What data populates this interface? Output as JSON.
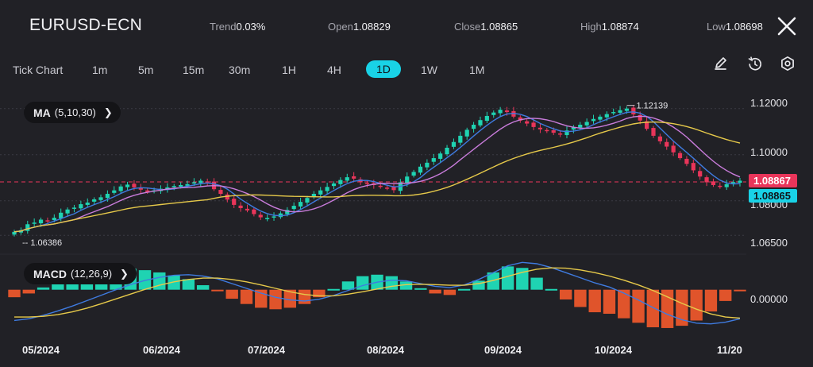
{
  "header": {
    "symbol": "EURUSD-ECN",
    "stats": [
      {
        "key": "Trend",
        "value": "0.03%"
      },
      {
        "key": "Open",
        "value": "1.08829"
      },
      {
        "key": "Close",
        "value": "1.08865"
      },
      {
        "key": "High",
        "value": "1.08874"
      },
      {
        "key": "Low",
        "value": "1.08698"
      }
    ]
  },
  "tabs": [
    "Tick Chart",
    "1m",
    "5m",
    "15m",
    "30m",
    "1H",
    "4H",
    "1D",
    "1W",
    "1M"
  ],
  "active_tab": "1D",
  "tools": [
    "pencil-icon",
    "reset-icon",
    "settings-icon"
  ],
  "main_indicator": {
    "name": "MA",
    "params": "(5,10,30)"
  },
  "sub_indicator": {
    "name": "MACD",
    "params": "(12,26,9)"
  },
  "price_axis": [
    "1.12000",
    "1.10000",
    "1.08000",
    "1.06500"
  ],
  "macd_axis": [
    "0.00000"
  ],
  "time_axis": [
    "05/2024",
    "06/2024",
    "07/2024",
    "08/2024",
    "09/2024",
    "10/2024",
    "11/20"
  ],
  "max_marker": "1.12139",
  "min_marker": "1.06386",
  "tags": {
    "ask": "1.08867",
    "last": "1.08865"
  },
  "colors": {
    "up": "#1fd3b2",
    "down": "#e9355a",
    "accent": "#19d2e6",
    "ma5": "#3f7be0",
    "ma10": "#c97cdb",
    "ma30": "#e6c94a",
    "background": "#212126"
  },
  "chart_data": {
    "type": "candlestick",
    "title": "EURUSD-ECN",
    "categories": [
      "05/2024",
      "06/2024",
      "07/2024",
      "08/2024",
      "09/2024",
      "10/2024",
      "11/20"
    ],
    "ylim": [
      1.063,
      1.123
    ],
    "close_series": [
      1.0665,
      1.0672,
      1.0698,
      1.0705,
      1.0718,
      1.0712,
      1.0726,
      1.0748,
      1.0762,
      1.077,
      1.0785,
      1.0792,
      1.0806,
      1.0815,
      1.083,
      1.0845,
      1.0862,
      1.087,
      1.0858,
      1.0848,
      1.0838,
      1.0845,
      1.0852,
      1.0858,
      1.0864,
      1.0868,
      1.0872,
      1.088,
      1.0887,
      1.0879,
      1.085,
      1.083,
      1.0805,
      1.0782,
      1.0768,
      1.0758,
      1.0742,
      1.0728,
      1.0725,
      1.0732,
      1.0745,
      1.076,
      1.0778,
      1.0795,
      1.0812,
      1.083,
      1.0845,
      1.086,
      1.0875,
      1.089,
      1.0902,
      1.0896,
      1.088,
      1.0872,
      1.0868,
      1.086,
      1.0856,
      1.0846,
      1.088,
      1.0905,
      1.0925,
      1.0948,
      1.0965,
      1.0985,
      1.1005,
      1.103,
      1.1055,
      1.1082,
      1.1108,
      1.113,
      1.115,
      1.1168,
      1.1183,
      1.1195,
      1.1185,
      1.1165,
      1.1148,
      1.1135,
      1.112,
      1.111,
      1.1102,
      1.1095,
      1.1088,
      1.1105,
      1.112,
      1.113,
      1.1142,
      1.1155,
      1.1165,
      1.1176,
      1.1185,
      1.1193,
      1.12,
      1.1175,
      1.1148,
      1.1112,
      1.1082,
      1.1058,
      1.1035,
      1.101,
      1.0985,
      1.096,
      1.0932,
      1.0905,
      1.088,
      1.0868,
      1.0862,
      1.0872,
      1.0881,
      1.0887
    ],
    "max_value": 1.12139,
    "min_value": 1.06386,
    "macd": {
      "ylim": [
        -0.011,
        0.009
      ],
      "dif": [
        -0.009,
        -0.0085,
        -0.0075,
        -0.0062,
        -0.0048,
        -0.0032,
        -0.0016,
        0.0,
        0.0015,
        0.0027,
        0.0036,
        0.0042,
        0.0044,
        0.004,
        0.0032,
        0.0018,
        0.0004,
        -0.001,
        -0.0022,
        -0.003,
        -0.0033,
        -0.0028,
        -0.0017,
        -0.0002,
        0.0012,
        0.0022,
        0.0028,
        0.0026,
        0.0018,
        0.001,
        0.0006,
        0.0014,
        0.003,
        0.005,
        0.007,
        0.008,
        0.0076,
        0.0065,
        0.005,
        0.0035,
        0.002,
        0.0008,
        -0.001,
        -0.003,
        -0.0052,
        -0.0072,
        -0.0088,
        -0.0098,
        -0.01,
        -0.0095,
        -0.0085
      ],
      "dea": [
        -0.008,
        -0.008,
        -0.0078,
        -0.0073,
        -0.0065,
        -0.0054,
        -0.0041,
        -0.0027,
        -0.0013,
        0.0001,
        0.0013,
        0.0023,
        0.003,
        0.0034,
        0.0034,
        0.003,
        0.0023,
        0.0014,
        0.0004,
        -0.0006,
        -0.0014,
        -0.0018,
        -0.0018,
        -0.0013,
        -0.0006,
        0.0002,
        0.001,
        0.0015,
        0.0016,
        0.0015,
        0.0013,
        0.0013,
        0.0018,
        0.0027,
        0.0039,
        0.0051,
        0.006,
        0.0064,
        0.0063,
        0.0058,
        0.005,
        0.004,
        0.0028,
        0.0014,
        -0.0002,
        -0.0021,
        -0.004,
        -0.0057,
        -0.0071,
        -0.008,
        -0.0083
      ]
    }
  }
}
